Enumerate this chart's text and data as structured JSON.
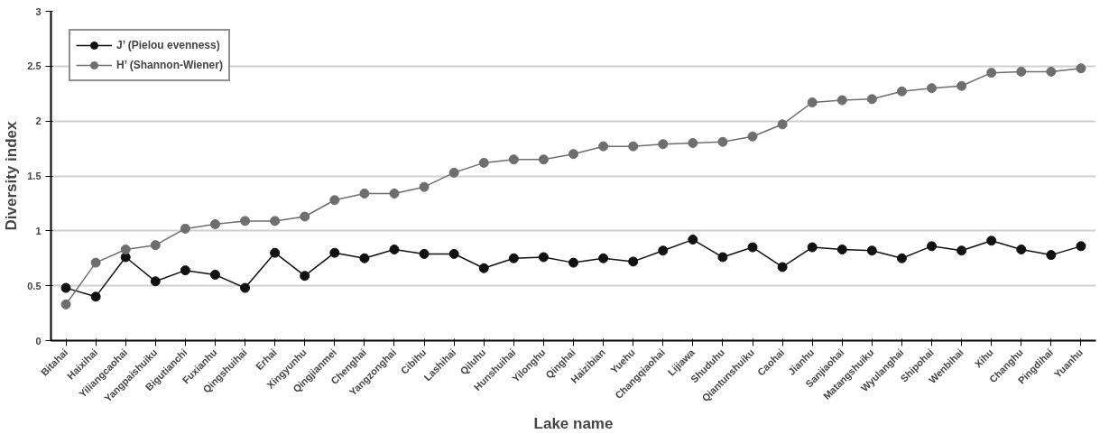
{
  "chart_data": {
    "type": "line",
    "xlabel": "Lake name",
    "ylabel": "Diversity index",
    "categories": [
      "Bitahai",
      "Haixihai",
      "Yiliangcaohai",
      "Yangpaishuiku",
      "Bigutianchi",
      "Fuxianhu",
      "Qingshuihai",
      "Erhai",
      "Xingyunhu",
      "Qingjianmei",
      "Chenghai",
      "Yangzonghai",
      "Cibihu",
      "Lashihai",
      "Qiluhu",
      "Hunshuihai",
      "Yilonghu",
      "Qinghai",
      "Haizibian",
      "Yuehu",
      "Changqiaohai",
      "Lijiawa",
      "Shuduhu",
      "Qiantunshuiku",
      "Caohai",
      "Jianhu",
      "Sanjiaohai",
      "Matangshuiku",
      "Wyulanghai",
      "Shipohai",
      "Wenbihai",
      "Xihu",
      "Changhu",
      "Pingdihai",
      "Yuanhu"
    ],
    "series": [
      {
        "name": "J’ (Pielou evenness)",
        "color": "#111111",
        "values": [
          0.48,
          0.4,
          0.76,
          0.54,
          0.64,
          0.6,
          0.48,
          0.8,
          0.59,
          0.8,
          0.75,
          0.83,
          0.79,
          0.79,
          0.66,
          0.75,
          0.76,
          0.71,
          0.75,
          0.72,
          0.82,
          0.92,
          0.76,
          0.85,
          0.67,
          0.85,
          0.83,
          0.82,
          0.75,
          0.86,
          0.82,
          0.91,
          0.83,
          0.78,
          0.86
        ]
      },
      {
        "name": "H’ (Shannon-Wiener)",
        "color": "#6e6e6e",
        "values": [
          0.33,
          0.71,
          0.83,
          0.87,
          1.02,
          1.06,
          1.09,
          1.09,
          1.13,
          1.28,
          1.34,
          1.34,
          1.4,
          1.53,
          1.62,
          1.65,
          1.65,
          1.7,
          1.77,
          1.77,
          1.79,
          1.8,
          1.81,
          1.86,
          1.97,
          2.17,
          2.19,
          2.2,
          2.27,
          2.3,
          2.32,
          2.44,
          2.45,
          2.45,
          2.48
        ]
      }
    ],
    "ylim": [
      0,
      3
    ],
    "yticks": [
      0,
      0.5,
      1,
      1.5,
      2,
      2.5,
      3
    ],
    "grid": "y",
    "legend": "top left",
    "marker": "circle",
    "line_style": "solid"
  }
}
